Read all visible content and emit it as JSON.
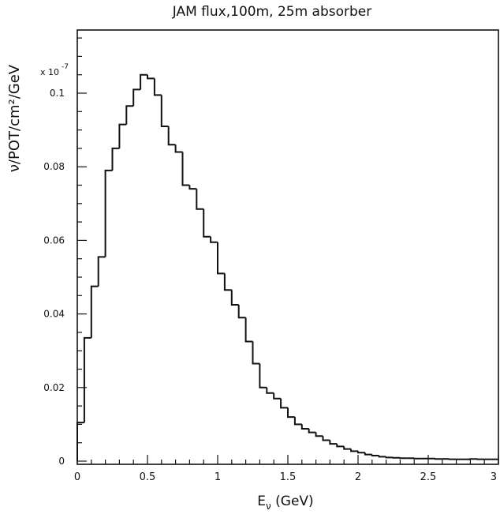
{
  "chart_data": {
    "type": "histogram",
    "title": "JAM flux,100m, 25m absorber",
    "xlabel": "E",
    "xlabel_sub": "ν",
    "xlabel_unit": " (GeV)",
    "ylabel": "ν/POT/cm²/GeV",
    "y_multiplier": "x 10",
    "y_multiplier_exp": "-7",
    "xlim": [
      0,
      3
    ],
    "ylim": [
      0,
      0.115
    ],
    "x_ticks": [
      {
        "value": 0,
        "label": "0"
      },
      {
        "value": 0.5,
        "label": "0.5"
      },
      {
        "value": 1,
        "label": "1"
      },
      {
        "value": 1.5,
        "label": "1.5"
      },
      {
        "value": 2,
        "label": "2"
      },
      {
        "value": 2.5,
        "label": "2.5"
      },
      {
        "value": 3,
        "label": "3"
      }
    ],
    "y_ticks": [
      {
        "value": 0,
        "label": "0"
      },
      {
        "value": 0.02,
        "label": "0.02"
      },
      {
        "value": 0.04,
        "label": "0.04"
      },
      {
        "value": 0.06,
        "label": "0.06"
      },
      {
        "value": 0.08,
        "label": "0.08"
      },
      {
        "value": 0.1,
        "label": "0.1"
      }
    ],
    "bin_width": 0.05,
    "bin_start": 0,
    "values": [
      0.0105,
      0.0335,
      0.0475,
      0.0555,
      0.079,
      0.085,
      0.0915,
      0.0965,
      0.101,
      0.105,
      0.104,
      0.0995,
      0.091,
      0.086,
      0.084,
      0.075,
      0.074,
      0.0685,
      0.061,
      0.0595,
      0.051,
      0.0465,
      0.0425,
      0.039,
      0.0325,
      0.0265,
      0.02,
      0.0185,
      0.017,
      0.0145,
      0.012,
      0.01,
      0.0088,
      0.0078,
      0.0068,
      0.0057,
      0.0047,
      0.004,
      0.0033,
      0.0027,
      0.0023,
      0.0018,
      0.0015,
      0.0012,
      0.001,
      0.0009,
      0.0008,
      0.0008,
      0.0007,
      0.0007,
      0.0007,
      0.0006,
      0.0006,
      0.0005,
      0.0005,
      0.0005,
      0.0006,
      0.0005,
      0.0005,
      0.0005
    ]
  }
}
